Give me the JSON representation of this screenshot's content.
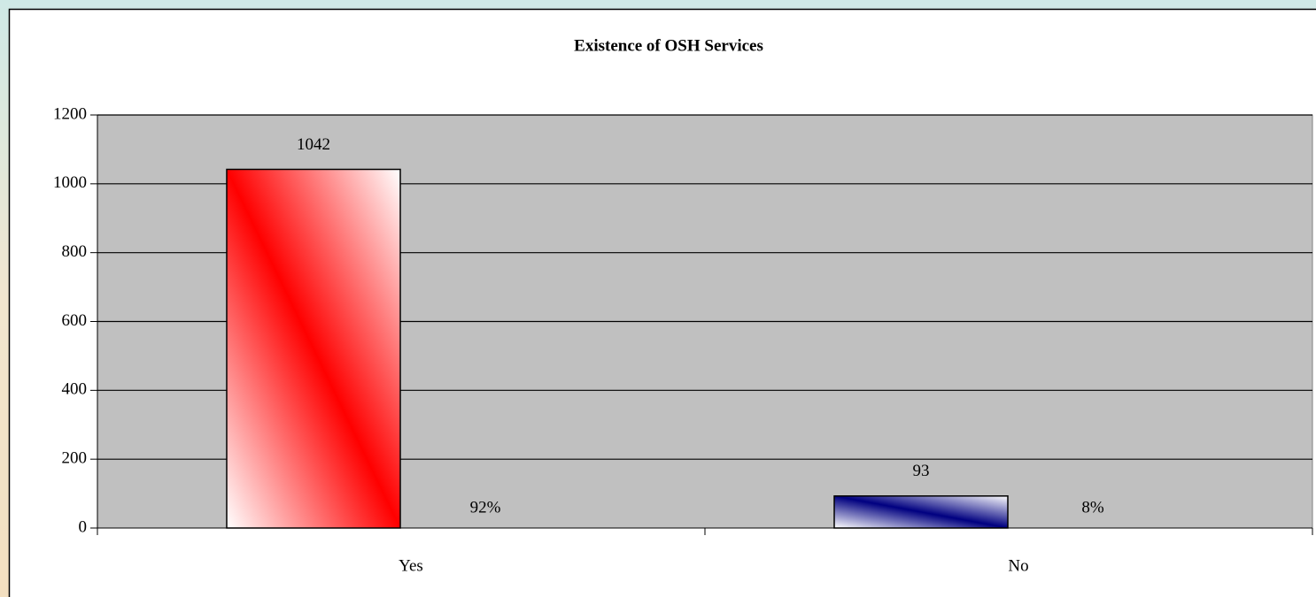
{
  "chart_data": {
    "type": "bar",
    "title": "Existence of OSH Services",
    "categories": [
      "Yes",
      "No"
    ],
    "values": [
      1042,
      93
    ],
    "colors": [
      "#ff0000",
      "#000080"
    ],
    "percent_labels": [
      "92%",
      "8%"
    ],
    "ylim": [
      0,
      1200
    ],
    "yticks": [
      0,
      200,
      400,
      600,
      800,
      1000,
      1200
    ],
    "grid": true
  }
}
